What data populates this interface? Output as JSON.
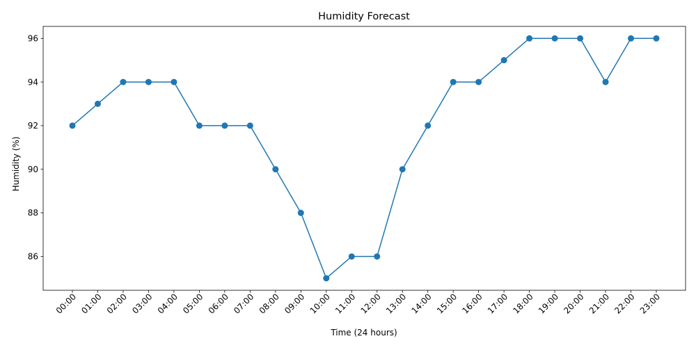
{
  "chart_data": {
    "type": "line",
    "title": "Humidity Forecast",
    "xlabel": "Time (24 hours)",
    "ylabel": "Humidity (%)",
    "categories": [
      "00:00",
      "01:00",
      "02:00",
      "03:00",
      "04:00",
      "05:00",
      "06:00",
      "07:00",
      "08:00",
      "09:00",
      "10:00",
      "11:00",
      "12:00",
      "13:00",
      "14:00",
      "15:00",
      "16:00",
      "17:00",
      "18:00",
      "19:00",
      "20:00",
      "21:00",
      "22:00",
      "23:00"
    ],
    "series": [
      {
        "values": [
          92,
          93,
          94,
          94,
          94,
          92,
          92,
          92,
          90,
          88,
          85,
          86,
          86,
          90,
          92,
          94,
          94,
          95,
          96,
          96,
          96,
          94,
          96,
          96
        ],
        "color": "#1f77b4",
        "marker": "circle"
      }
    ],
    "ylim": [
      84.45,
      96.55
    ],
    "yticks": [
      86,
      88,
      90,
      92,
      94,
      96
    ],
    "grid": false,
    "legend": "none",
    "x_tick_rotation": 45
  }
}
